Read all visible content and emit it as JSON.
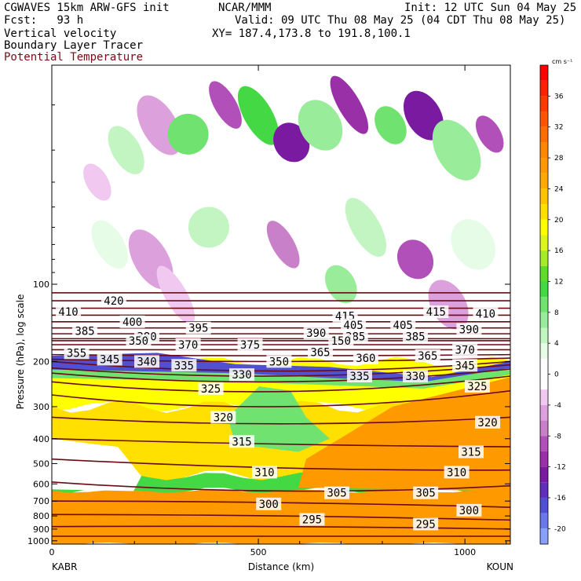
{
  "header": {
    "model": "CGWAVES 15km ARW-GFS init",
    "org": "NCAR/MMM",
    "init": "Init: 12 UTC Sun 04 May 25",
    "fcst": "Fcst:   93 h",
    "valid": "Valid: 09 UTC Thu 08 May 25 (04 CDT Thu 08 May 25)",
    "field1": "Vertical velocity",
    "xy": "XY= 187.4,173.8 to 191.8,100.1",
    "field2": "Boundary Layer Tracer",
    "field3": "Potential Temperature"
  },
  "colors": {
    "contour": "#6a0a14",
    "field3_label": "#7a0a14"
  },
  "chart_data": {
    "type": "heatmap",
    "title": "Vertical velocity",
    "xlabel": "Distance (km)",
    "ylabel": "Pressure (hPa), log scale",
    "x_ticks": [
      "0",
      "500",
      "1000"
    ],
    "x_range": [
      0,
      1110
    ],
    "y_ticks": [
      "100",
      "200",
      "300",
      "400",
      "500",
      "600",
      "700",
      "800",
      "900",
      "1000"
    ],
    "y_tick_values": [
      100,
      200,
      300,
      400,
      500,
      600,
      700,
      800,
      900,
      1000
    ],
    "y_range": [
      14,
      1030
    ],
    "y_log": true,
    "endpoints": {
      "left": "KABR",
      "right": "KOUN"
    },
    "colorbar": {
      "unit": "cm s⁻¹",
      "labels": [
        "36",
        "32",
        "28",
        "24",
        "20",
        "16",
        "12",
        "8",
        "4",
        "0",
        "-4",
        "-8",
        "-12",
        "-16",
        "-20"
      ],
      "label_values": [
        36,
        32,
        28,
        24,
        20,
        16,
        12,
        8,
        4,
        0,
        -4,
        -8,
        -12,
        -16,
        -20
      ],
      "min": -22,
      "max": 40,
      "bins": [
        {
          "lo": 38,
          "hi": 40,
          "color": "#ff0000"
        },
        {
          "lo": 36,
          "hi": 38,
          "color": "#ff2000"
        },
        {
          "lo": 34,
          "hi": 36,
          "color": "#ff3a00"
        },
        {
          "lo": 32,
          "hi": 34,
          "color": "#ff5500"
        },
        {
          "lo": 30,
          "hi": 32,
          "color": "#ff6f00"
        },
        {
          "lo": 28,
          "hi": 30,
          "color": "#ff8800"
        },
        {
          "lo": 26,
          "hi": 28,
          "color": "#ff9900"
        },
        {
          "lo": 24,
          "hi": 26,
          "color": "#ffaa00"
        },
        {
          "lo": 22,
          "hi": 24,
          "color": "#ffc400"
        },
        {
          "lo": 20,
          "hi": 22,
          "color": "#ffe000"
        },
        {
          "lo": 18,
          "hi": 20,
          "color": "#ffff00"
        },
        {
          "lo": 16,
          "hi": 18,
          "color": "#ddf51e"
        },
        {
          "lo": 14,
          "hi": 16,
          "color": "#a6ea2a"
        },
        {
          "lo": 12,
          "hi": 14,
          "color": "#5fdb2e"
        },
        {
          "lo": 10,
          "hi": 12,
          "color": "#44d844"
        },
        {
          "lo": 8,
          "hi": 10,
          "color": "#6fe26f"
        },
        {
          "lo": 6,
          "hi": 8,
          "color": "#99ec99"
        },
        {
          "lo": 4,
          "hi": 6,
          "color": "#c2f5c2"
        },
        {
          "lo": 2,
          "hi": 4,
          "color": "#e6fce6"
        },
        {
          "lo": -2,
          "hi": 2,
          "color": "#ffffff"
        },
        {
          "lo": -4,
          "hi": -2,
          "color": "#f0c8f0"
        },
        {
          "lo": -6,
          "hi": -4,
          "color": "#dca0dc"
        },
        {
          "lo": -8,
          "hi": -6,
          "color": "#c880c8"
        },
        {
          "lo": -10,
          "hi": -8,
          "color": "#b050b8"
        },
        {
          "lo": -12,
          "hi": -10,
          "color": "#9a30a8"
        },
        {
          "lo": -14,
          "hi": -12,
          "color": "#7a1aa0"
        },
        {
          "lo": -16,
          "hi": -14,
          "color": "#6030b8"
        },
        {
          "lo": -18,
          "hi": -16,
          "color": "#5050d0"
        },
        {
          "lo": -20,
          "hi": -18,
          "color": "#6a78e8"
        },
        {
          "lo": -22,
          "hi": -20,
          "color": "#8aa0f8"
        }
      ]
    },
    "theta_labels": [
      {
        "x": 40,
        "p": 128,
        "text": "410"
      },
      {
        "x": 150,
        "p": 116,
        "text": "420"
      },
      {
        "x": 195,
        "p": 140,
        "text": "400"
      },
      {
        "x": 710,
        "p": 133,
        "text": "415"
      },
      {
        "x": 930,
        "p": 128,
        "text": "415"
      },
      {
        "x": 1050,
        "p": 130,
        "text": "410"
      },
      {
        "x": 80,
        "p": 152,
        "text": "385"
      },
      {
        "x": 355,
        "p": 148,
        "text": "395"
      },
      {
        "x": 640,
        "p": 155,
        "text": "390"
      },
      {
        "x": 730,
        "p": 144,
        "text": "405"
      },
      {
        "x": 850,
        "p": 144,
        "text": "405"
      },
      {
        "x": 1010,
        "p": 150,
        "text": "390"
      },
      {
        "x": 230,
        "p": 160,
        "text": "380"
      },
      {
        "x": 735,
        "p": 160,
        "text": "385"
      },
      {
        "x": 880,
        "p": 160,
        "text": "385"
      },
      {
        "x": 210,
        "p": 166,
        "text": "350"
      },
      {
        "x": 700,
        "p": 166,
        "text": "150"
      },
      {
        "x": 330,
        "p": 172,
        "text": "370"
      },
      {
        "x": 480,
        "p": 172,
        "text": "375"
      },
      {
        "x": 1000,
        "p": 180,
        "text": "370"
      },
      {
        "x": 60,
        "p": 185,
        "text": "355"
      },
      {
        "x": 650,
        "p": 184,
        "text": "365"
      },
      {
        "x": 910,
        "p": 190,
        "text": "365"
      },
      {
        "x": 760,
        "p": 194,
        "text": "360"
      },
      {
        "x": 140,
        "p": 196,
        "text": "345"
      },
      {
        "x": 550,
        "p": 200,
        "text": "350"
      },
      {
        "x": 230,
        "p": 200,
        "text": "340"
      },
      {
        "x": 320,
        "p": 207,
        "text": "335"
      },
      {
        "x": 1000,
        "p": 207,
        "text": "345"
      },
      {
        "x": 460,
        "p": 225,
        "text": "330"
      },
      {
        "x": 745,
        "p": 228,
        "text": "335"
      },
      {
        "x": 880,
        "p": 228,
        "text": "330"
      },
      {
        "x": 385,
        "p": 255,
        "text": "325"
      },
      {
        "x": 1030,
        "p": 250,
        "text": "325"
      },
      {
        "x": 415,
        "p": 330,
        "text": "320"
      },
      {
        "x": 1055,
        "p": 345,
        "text": "320"
      },
      {
        "x": 460,
        "p": 410,
        "text": "315"
      },
      {
        "x": 1015,
        "p": 450,
        "text": "315"
      },
      {
        "x": 515,
        "p": 540,
        "text": "310"
      },
      {
        "x": 980,
        "p": 540,
        "text": "310"
      },
      {
        "x": 690,
        "p": 650,
        "text": "305"
      },
      {
        "x": 905,
        "p": 650,
        "text": "305"
      },
      {
        "x": 525,
        "p": 718,
        "text": "300"
      },
      {
        "x": 1010,
        "p": 760,
        "text": "300"
      },
      {
        "x": 630,
        "p": 825,
        "text": "295"
      },
      {
        "x": 905,
        "p": 860,
        "text": "295"
      }
    ],
    "theta_lines": [
      {
        "p": [
          108,
          108,
          108
        ]
      },
      {
        "p": [
          116,
          116,
          116
        ]
      },
      {
        "p": [
          124,
          124,
          124
        ]
      },
      {
        "p": [
          132,
          132,
          132
        ]
      },
      {
        "p": [
          140,
          140,
          140
        ]
      },
      {
        "p": [
          148,
          148,
          148
        ]
      },
      {
        "p": [
          156,
          156,
          156
        ]
      },
      {
        "p": [
          163,
          163,
          163
        ]
      },
      {
        "p": [
          166,
          166,
          166
        ]
      },
      {
        "p": [
          172,
          172,
          172
        ]
      },
      {
        "p": [
          180,
          180,
          180
        ]
      },
      {
        "p": [
          188,
          190,
          188
        ]
      },
      {
        "p": [
          196,
          200,
          194
        ]
      },
      {
        "p": [
          200,
          218,
          200
        ]
      },
      {
        "p": [
          212,
          228,
          206
        ]
      },
      {
        "p": [
          222,
          240,
          214
        ]
      },
      {
        "p": [
          240,
          262,
          228
        ]
      },
      {
        "p": [
          270,
          300,
          260
        ]
      },
      {
        "p": [
          330,
          350,
          330
        ]
      },
      {
        "p": [
          400,
          420,
          430
        ]
      },
      {
        "p": [
          480,
          520,
          530
        ]
      },
      {
        "p": [
          590,
          640,
          610
        ]
      },
      {
        "p": [
          700,
          710,
          740
        ]
      },
      {
        "p": [
          790,
          800,
          830
        ]
      },
      {
        "p": [
          880,
          880,
          900
        ]
      },
      {
        "p": [
          960,
          960,
          960
        ]
      }
    ]
  }
}
